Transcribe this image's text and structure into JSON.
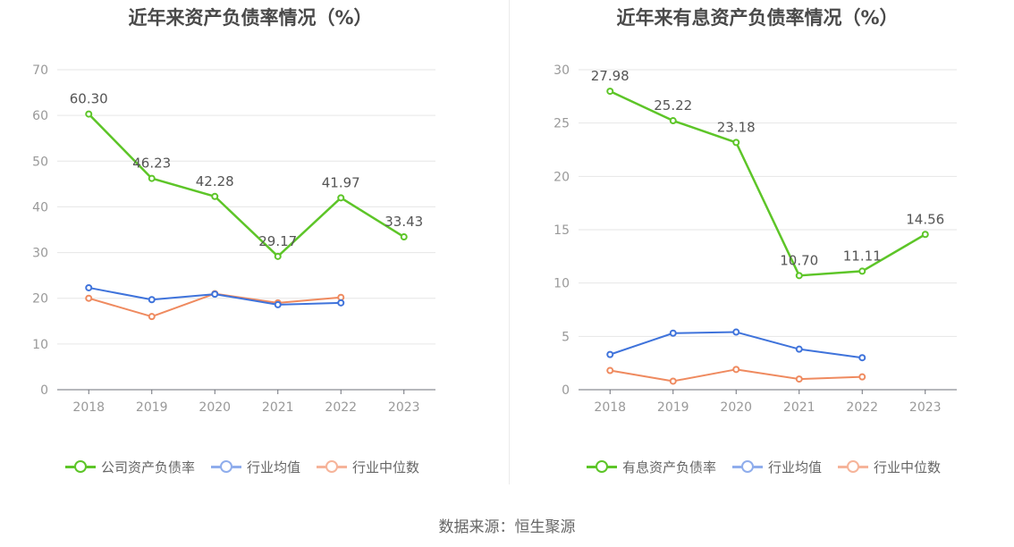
{
  "source_text": "数据来源：恒生聚源",
  "colors": {
    "company": "#5dc528",
    "industry_avg": "#3f73db",
    "industry_median": "#ef8a5f",
    "legend_avg": "#8fadec",
    "legend_median": "#f6b49a"
  },
  "chart_data": [
    {
      "type": "line",
      "title": "近年来资产负债率情况（%）",
      "x": [
        "2018",
        "2019",
        "2020",
        "2021",
        "2022",
        "2023"
      ],
      "ylim": [
        0,
        70
      ],
      "yticks": [
        "0",
        "10",
        "20",
        "30",
        "40",
        "50",
        "60",
        "70"
      ],
      "grid": true,
      "legend_position": "bottom",
      "series": [
        {
          "name": "公司资产负债率",
          "values": [
            60.3,
            46.23,
            42.28,
            29.17,
            41.97,
            33.43
          ],
          "labels": [
            "60.30",
            "46.23",
            "42.28",
            "29.17",
            "41.97",
            "33.43"
          ]
        },
        {
          "name": "行业均值",
          "values": [
            22.3,
            19.7,
            20.9,
            18.6,
            19.0,
            null
          ]
        },
        {
          "name": "行业中位数",
          "values": [
            20.0,
            16.0,
            21.0,
            19.0,
            20.2,
            null
          ]
        }
      ]
    },
    {
      "type": "line",
      "title": "近年来有息资产负债率情况（%）",
      "x": [
        "2018",
        "2019",
        "2020",
        "2021",
        "2022",
        "2023"
      ],
      "ylim": [
        0,
        30
      ],
      "yticks": [
        "0",
        "5",
        "10",
        "15",
        "20",
        "25",
        "30"
      ],
      "grid": true,
      "legend_position": "bottom",
      "series": [
        {
          "name": "有息资产负债率",
          "values": [
            27.98,
            25.22,
            23.18,
            10.7,
            11.11,
            14.56
          ],
          "labels": [
            "27.98",
            "25.22",
            "23.18",
            "10.70",
            "11.11",
            "14.56"
          ]
        },
        {
          "name": "行业均值",
          "values": [
            3.3,
            5.3,
            5.4,
            3.8,
            3.0,
            null
          ]
        },
        {
          "name": "行业中位数",
          "values": [
            1.8,
            0.8,
            1.9,
            1.0,
            1.2,
            null
          ]
        }
      ]
    }
  ]
}
